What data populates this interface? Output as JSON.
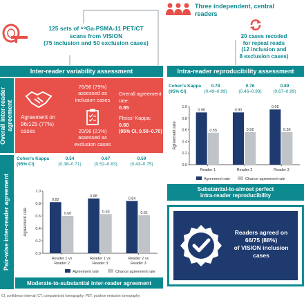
{
  "top": {
    "readers_text": "Three independent, central readers",
    "scans_text_1": "125 sets of ⁶⁸Ga-PSMA-11 PET/CT",
    "scans_text_2": "scans from VISION",
    "scans_text_3": "(75 inclusion and 50 exclusion cases)",
    "recoded_text_1": "20 cases recoded",
    "recoded_text_2": "for repeat reads",
    "recoded_text_3": "(12 inclusion and",
    "recoded_text_4": "8 exclusion cases)"
  },
  "inter_title": "Inter-reader variability assessment",
  "intra_title": "Intra-reader reproducibility assessment",
  "overall": {
    "side_label": "Overall inter-reader agreement",
    "agreement_text": "Agreement on 96/125 (77%) cases",
    "inclusion_text": "76/96 (79%) assessed as inclusion cases",
    "exclusion_text": "20/96 (21%) assessed as exclusion cases",
    "overall_rate_label": "Overall agreement rate:",
    "overall_rate_value": "0.85",
    "fleiss_label": "Fleiss' Kappa:",
    "fleiss_value": "0.60",
    "fleiss_ci": "(95% CI, 0.50–0.70)"
  },
  "pairwise": {
    "side_label": "Pair-wise inter-reader agreement",
    "kappa_label_1": "Cohen's Kappa",
    "kappa_label_2": "(95% CI)",
    "kappas": [
      {
        "value": "0.54",
        "ci": "(0.38–0.71)"
      },
      {
        "value": "0.67",
        "ci": "(0.52–0.83)"
      },
      {
        "value": "0.59",
        "ci": "(0.43–0.75)"
      }
    ],
    "summary": "Moderate-to-substantial inter-reader agreement"
  },
  "intra": {
    "kappa_label_1": "Cohen's Kappa",
    "kappa_label_2": "(95% CI)",
    "kappas": [
      {
        "value": "0.78",
        "ci": "(0.49–0.99)"
      },
      {
        "value": "0.76",
        "ci": "(0.46–0.99)"
      },
      {
        "value": "0.89",
        "ci": "(0.67–0.99)"
      }
    ],
    "summary_1": "Substantial-to-almost perfect",
    "summary_2": "intra-reader reproducibility"
  },
  "callout": {
    "line1": "Readers agreed on",
    "line2": "66/75 (88%)",
    "line3": "of VISION inclusion cases"
  },
  "footnote": "CI, confidence interval; CT, computerized tomography; PET, positron emission tomography",
  "colors": {
    "teal": "#0d8a8f",
    "navy": "#1f3a6e",
    "gray_bar": "#c0c4c8",
    "red": "#e8504a"
  },
  "chart_data": [
    {
      "type": "bar",
      "categories": [
        "Reader 1 vs Reader 2",
        "Reader 1 vs Reader 3",
        "Reader 2 vs Reader 3"
      ],
      "series": [
        {
          "name": "Agreement rate",
          "values": [
            0.82,
            0.88,
            0.84
          ]
        },
        {
          "name": "Chance agreement rate",
          "values": [
            0.6,
            0.63,
            0.61
          ]
        }
      ],
      "ylabel": "Agreement rate",
      "ylim": [
        0,
        1.0
      ],
      "yticks": [
        "0.0",
        "0.2",
        "0.4",
        "0.6",
        "0.8",
        "1.0"
      ]
    },
    {
      "type": "bar",
      "categories": [
        "Reader 1",
        "Reader 2",
        "Reader 3"
      ],
      "series": [
        {
          "name": "Agreement rate",
          "values": [
            0.9,
            0.9,
            0.95
          ]
        },
        {
          "name": "Chance agreement rate",
          "values": [
            0.55,
            0.56,
            0.56
          ]
        }
      ],
      "ylabel": "Agreement rate",
      "ylim": [
        0,
        1.0
      ],
      "yticks": [
        "0.0",
        "0.2",
        "0.4",
        "0.6",
        "0.8",
        "1.0"
      ]
    }
  ]
}
